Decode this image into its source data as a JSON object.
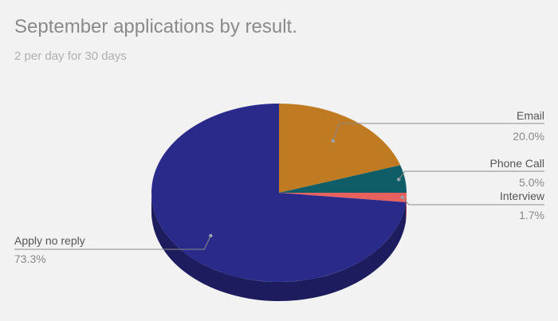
{
  "chart_data": {
    "type": "pie",
    "title": "September applications by result.",
    "subtitle": "2 per day for 30 days",
    "slices": [
      {
        "label": "Email",
        "percent": "20.0%",
        "value": 20.0,
        "color": "#c07b22",
        "side_color": "#8a5716"
      },
      {
        "label": "Phone Call",
        "percent": "5.0%",
        "value": 5.0,
        "color": "#0f5d66",
        "side_color": "#0a4148"
      },
      {
        "label": "Interview",
        "percent": "1.7%",
        "value": 1.7,
        "color": "#e8615f",
        "side_color": "#a84442"
      },
      {
        "label": "Apply no reply",
        "percent": "73.3%",
        "value": 73.3,
        "color": "#2a2a8a",
        "side_color": "#1c1c5e"
      }
    ]
  }
}
